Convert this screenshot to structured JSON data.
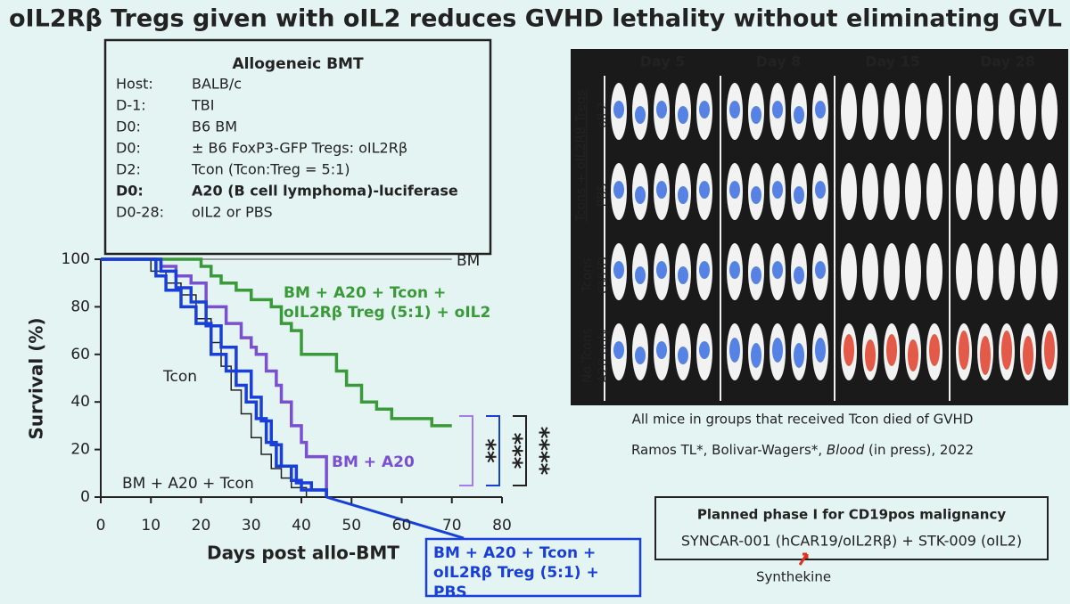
{
  "title": "oIL2Rβ Tregs given with oIL2 reduces GVHD lethality without eliminating GVL",
  "protocol": {
    "heading": "Allogeneic BMT",
    "rows": [
      [
        "Host:",
        "BALB/c"
      ],
      [
        "D-1:",
        "TBI"
      ],
      [
        "D0:",
        "B6 BM"
      ],
      [
        "D0:",
        "± B6 FoxP3-GFP Tregs: oIL2Rβ"
      ],
      [
        "D2:",
        "Tcon (Tcon:Treg = 5:1)"
      ],
      [
        "D0:",
        "A20 (B cell lymphoma)-luciferase"
      ],
      [
        "D0-28:",
        "oIL2 or PBS"
      ]
    ]
  },
  "imaging": {
    "days": [
      "Day 5",
      "Day 8",
      "Day 15",
      "Day 28"
    ],
    "group_header": "Tcons + oIL2Rβ Tregs",
    "rows": [
      [
        "oIL2"
      ],
      [
        "PBS"
      ],
      [
        "Tcons",
        "GVHD"
      ],
      [
        "No Tcons",
        "A20 only"
      ]
    ]
  },
  "caption": "All mice in groups that received Tcon died of GVHD",
  "citation": [
    "Ramos TL*, Bolivar-Wagers*, ",
    "Blood",
    " (in press), 2022"
  ],
  "planned": {
    "heading": "Planned phase I for CD19pos malignancy",
    "text": "SYNCAR-001 (hCAR19/oIL2Rβ) + STK-009 (oIL2)",
    "pointer": "Synthekine"
  },
  "chart_data": {
    "type": "line",
    "step": true,
    "xlabel": "Days post allo-BMT",
    "ylabel": "Survival (%)",
    "xlim": [
      0,
      80
    ],
    "ylim": [
      0,
      100
    ],
    "xticks": [
      0,
      10,
      20,
      30,
      40,
      50,
      60,
      70,
      80
    ],
    "yticks": [
      0,
      20,
      40,
      60,
      80,
      100
    ],
    "series": [
      {
        "name": "BM",
        "color": "#9a9a9a",
        "x": [
          0,
          70
        ],
        "values": [
          100,
          100
        ]
      },
      {
        "name": "BM + A20 + Tcon + oIL2Rβ Treg (5:1) + oIL2",
        "color": "#3a9a3a",
        "x": [
          0,
          20,
          22,
          24,
          27,
          30,
          34,
          36,
          38,
          40,
          47,
          49,
          52,
          55,
          58,
          66,
          70
        ],
        "values": [
          100,
          97,
          93,
          90,
          87,
          83,
          80,
          73,
          70,
          60,
          53,
          47,
          40,
          37,
          33,
          30,
          30
        ]
      },
      {
        "name": "BM + A20",
        "color": "#7a4fd0",
        "x": [
          0,
          12,
          15,
          18,
          21,
          25,
          28,
          30,
          31,
          33,
          35,
          36,
          38,
          40,
          41,
          45
        ],
        "values": [
          100,
          97,
          93,
          90,
          80,
          73,
          67,
          63,
          60,
          53,
          47,
          40,
          30,
          23,
          17,
          0
        ]
      },
      {
        "name": "Tcon",
        "color": "#222222",
        "x": [
          0,
          10,
          13,
          16,
          19,
          22,
          24,
          26,
          28,
          30,
          32,
          34,
          36,
          38,
          41
        ],
        "values": [
          100,
          95,
          90,
          85,
          75,
          65,
          55,
          45,
          35,
          25,
          18,
          12,
          8,
          4,
          0
        ]
      },
      {
        "name": "BM + A20 + Tcon",
        "color": "#1a3fd8",
        "x": [
          0,
          11,
          13,
          16,
          19,
          22,
          25,
          27,
          29,
          31,
          33,
          35,
          38,
          40,
          45
        ],
        "values": [
          100,
          93,
          87,
          80,
          73,
          60,
          53,
          47,
          40,
          33,
          23,
          13,
          7,
          3,
          0
        ]
      },
      {
        "name": "BM + A20 + Tcon + oIL2Rβ Treg (5:1) + PBS",
        "color": "#1a3fd8",
        "x": [
          0,
          12,
          15,
          18,
          21,
          24,
          27,
          30,
          32,
          34,
          36,
          39,
          42,
          45
        ],
        "values": [
          100,
          95,
          88,
          82,
          72,
          63,
          53,
          42,
          32,
          22,
          13,
          6,
          3,
          0
        ]
      }
    ],
    "significance": [
      {
        "label": "**",
        "color": "#a47cf0"
      },
      {
        "label": "***",
        "color": "#1a3fd8"
      },
      {
        "label": "****",
        "color": "#222222"
      }
    ]
  }
}
